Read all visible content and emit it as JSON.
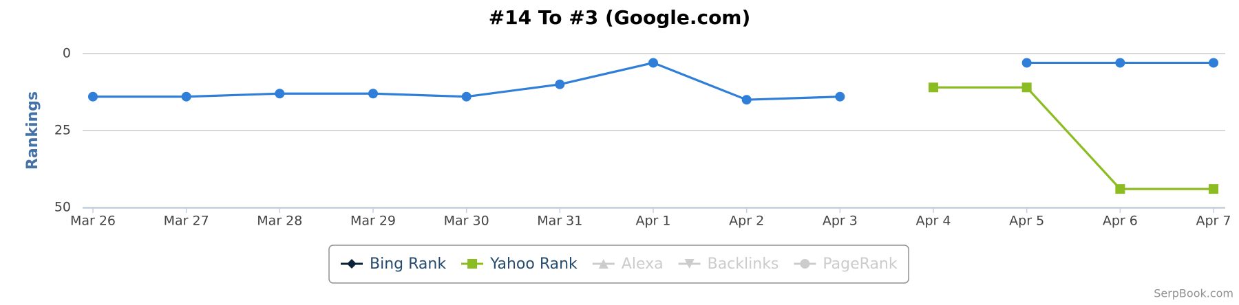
{
  "chart_data": {
    "type": "line",
    "title": "#14 To #3 (Google.com)",
    "y_label": "Rankings",
    "credit": "SerpBook.com",
    "categories": [
      "Mar 26",
      "Mar 27",
      "Mar 28",
      "Mar 29",
      "Mar 30",
      "Mar 31",
      "Apr 1",
      "Apr 2",
      "Apr 3",
      "Apr 4",
      "Apr 5",
      "Apr 6",
      "Apr 7"
    ],
    "series": [
      {
        "color": "#2f7ed8",
        "marker": "circle",
        "values": [
          14,
          14,
          13,
          13,
          14,
          10,
          3,
          15,
          14,
          null,
          3,
          3,
          3
        ]
      },
      {
        "name": "Bing Rank",
        "color": "#0d233a",
        "marker": "diamond",
        "visible": true,
        "values": [
          null,
          null,
          null,
          null,
          null,
          null,
          null,
          null,
          null,
          null,
          null,
          null,
          null
        ]
      },
      {
        "name": "Yahoo Rank",
        "color": "#8bbc21",
        "marker": "square",
        "visible": true,
        "values": [
          null,
          null,
          null,
          null,
          null,
          null,
          null,
          null,
          null,
          11,
          11,
          44,
          44
        ]
      },
      {
        "name": "Alexa",
        "color": "#910000",
        "marker": "triangle",
        "visible": false,
        "values": [
          null,
          null,
          null,
          null,
          null,
          null,
          null,
          null,
          null,
          null,
          null,
          null,
          null
        ]
      },
      {
        "name": "Backlinks",
        "color": "#1aadce",
        "marker": "triangle-down",
        "visible": false,
        "values": [
          null,
          null,
          null,
          null,
          null,
          null,
          null,
          null,
          null,
          null,
          null,
          null,
          null
        ]
      },
      {
        "name": "PageRank",
        "color": "#492970",
        "marker": "circle",
        "visible": false,
        "values": [
          null,
          null,
          null,
          null,
          null,
          null,
          null,
          null,
          null,
          null,
          null,
          null,
          null
        ]
      }
    ],
    "ylim": [
      0,
      50
    ],
    "yticks": [
      0,
      25,
      50
    ],
    "y_reversed": true,
    "grid": true
  }
}
